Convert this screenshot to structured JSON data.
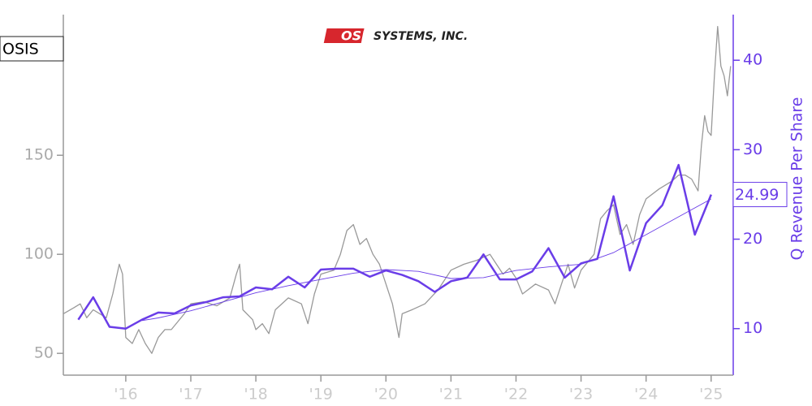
{
  "chart_data": {
    "type": "line",
    "logo": {
      "mark": "OSI",
      "text": "SYSTEMS, INC."
    },
    "y2_label": "Q Revenue Per Share",
    "xlim": [
      2015.04,
      2025.34
    ],
    "xticks": [
      {
        "value": 2016,
        "label": "'16"
      },
      {
        "value": 2017,
        "label": "'17"
      },
      {
        "value": 2018,
        "label": "'18"
      },
      {
        "value": 2019,
        "label": "'19"
      },
      {
        "value": 2020,
        "label": "'20"
      },
      {
        "value": 2021,
        "label": "'21"
      },
      {
        "value": 2022,
        "label": "'22"
      },
      {
        "value": 2023,
        "label": "'23"
      },
      {
        "value": 2024,
        "label": "'24"
      },
      {
        "value": 2025,
        "label": "'25"
      }
    ],
    "ylim": [
      39,
      221
    ],
    "yticks": [
      50,
      100,
      150
    ],
    "y2lim": [
      4.8,
      45.1
    ],
    "y2ticks": [
      10,
      20,
      30,
      40
    ],
    "series": [
      {
        "name": "OSIS",
        "color": "#999999",
        "width": 1.3,
        "x": [
          2015.04,
          2015.2,
          2015.3,
          2015.4,
          2015.5,
          2015.6,
          2015.7,
          2015.8,
          2015.9,
          2015.95,
          2016.0,
          2016.1,
          2016.2,
          2016.3,
          2016.4,
          2016.5,
          2016.6,
          2016.7,
          2016.8,
          2016.9,
          2017.0,
          2017.2,
          2017.4,
          2017.6,
          2017.7,
          2017.75,
          2017.8,
          2017.95,
          2018.0,
          2018.1,
          2018.2,
          2018.3,
          2018.5,
          2018.7,
          2018.8,
          2018.9,
          2019.0,
          2019.2,
          2019.3,
          2019.4,
          2019.5,
          2019.6,
          2019.7,
          2019.8,
          2019.9,
          2020.0,
          2020.1,
          2020.2,
          2020.25,
          2020.4,
          2020.6,
          2020.8,
          2021.0,
          2021.2,
          2021.4,
          2021.6,
          2021.7,
          2021.8,
          2021.9,
          2022.0,
          2022.1,
          2022.3,
          2022.5,
          2022.6,
          2022.7,
          2022.8,
          2022.9,
          2023.0,
          2023.2,
          2023.3,
          2023.4,
          2023.5,
          2023.6,
          2023.7,
          2023.8,
          2023.9,
          2024.0,
          2024.2,
          2024.4,
          2024.5,
          2024.6,
          2024.7,
          2024.8,
          2024.85,
          2024.9,
          2024.95,
          2025.0,
          2025.05,
          2025.1,
          2025.15,
          2025.2,
          2025.25,
          2025.3
        ],
        "values": [
          70,
          73,
          75,
          68,
          72,
          70,
          68,
          80,
          95,
          90,
          58,
          55,
          62,
          55,
          50,
          58,
          62,
          62,
          66,
          70,
          75,
          76,
          74,
          78,
          90,
          95,
          72,
          67,
          62,
          65,
          60,
          72,
          78,
          75,
          65,
          80,
          90,
          92,
          100,
          112,
          115,
          105,
          108,
          100,
          95,
          85,
          75,
          58,
          70,
          72,
          75,
          82,
          92,
          95,
          97,
          100,
          95,
          90,
          93,
          88,
          80,
          85,
          82,
          75,
          85,
          95,
          83,
          92,
          100,
          118,
          122,
          125,
          110,
          115,
          105,
          120,
          128,
          133,
          137,
          140,
          140,
          138,
          132,
          155,
          170,
          162,
          160,
          190,
          215,
          195,
          190,
          180,
          195
        ]
      },
      {
        "color": "#6a3de8",
        "width": 2.5,
        "axis": "y2",
        "x": [
          2015.27,
          2015.5,
          2015.75,
          2016.0,
          2016.25,
          2016.5,
          2016.75,
          2017.0,
          2017.25,
          2017.5,
          2017.75,
          2018.0,
          2018.25,
          2018.5,
          2018.75,
          2019.0,
          2019.25,
          2019.5,
          2019.75,
          2020.0,
          2020.25,
          2020.5,
          2020.75,
          2021.0,
          2021.25,
          2021.5,
          2021.75,
          2022.0,
          2022.25,
          2022.5,
          2022.75,
          2023.0,
          2023.25,
          2023.5,
          2023.75,
          2024.0,
          2024.25,
          2024.5,
          2024.75,
          2025.0
        ],
        "values": [
          11.0,
          13.5,
          10.2,
          10.0,
          11.0,
          11.8,
          11.7,
          12.6,
          13.0,
          13.5,
          13.6,
          14.6,
          14.4,
          15.8,
          14.6,
          16.6,
          16.7,
          16.7,
          15.8,
          16.5,
          16.0,
          15.3,
          14.1,
          15.3,
          15.7,
          18.3,
          15.5,
          15.5,
          16.4,
          19.0,
          15.7,
          17.3,
          17.8,
          24.8,
          16.5,
          21.8,
          23.8,
          28.3,
          20.5,
          24.99
        ]
      },
      {
        "color": "#6a3de8",
        "width": 0.9,
        "axis": "y2",
        "x": [
          2016.25,
          2016.5,
          2017.0,
          2017.5,
          2018.0,
          2018.5,
          2019.0,
          2019.5,
          2020.0,
          2020.5,
          2021.0,
          2021.5,
          2022.0,
          2022.5,
          2023.0,
          2023.5,
          2024.0,
          2024.5,
          2025.0
        ],
        "values": [
          10.9,
          11.2,
          12.0,
          13.0,
          14.0,
          14.8,
          15.5,
          16.2,
          16.6,
          16.4,
          15.6,
          15.7,
          16.5,
          16.9,
          17.2,
          18.5,
          20.5,
          22.5,
          24.5
        ]
      }
    ]
  }
}
